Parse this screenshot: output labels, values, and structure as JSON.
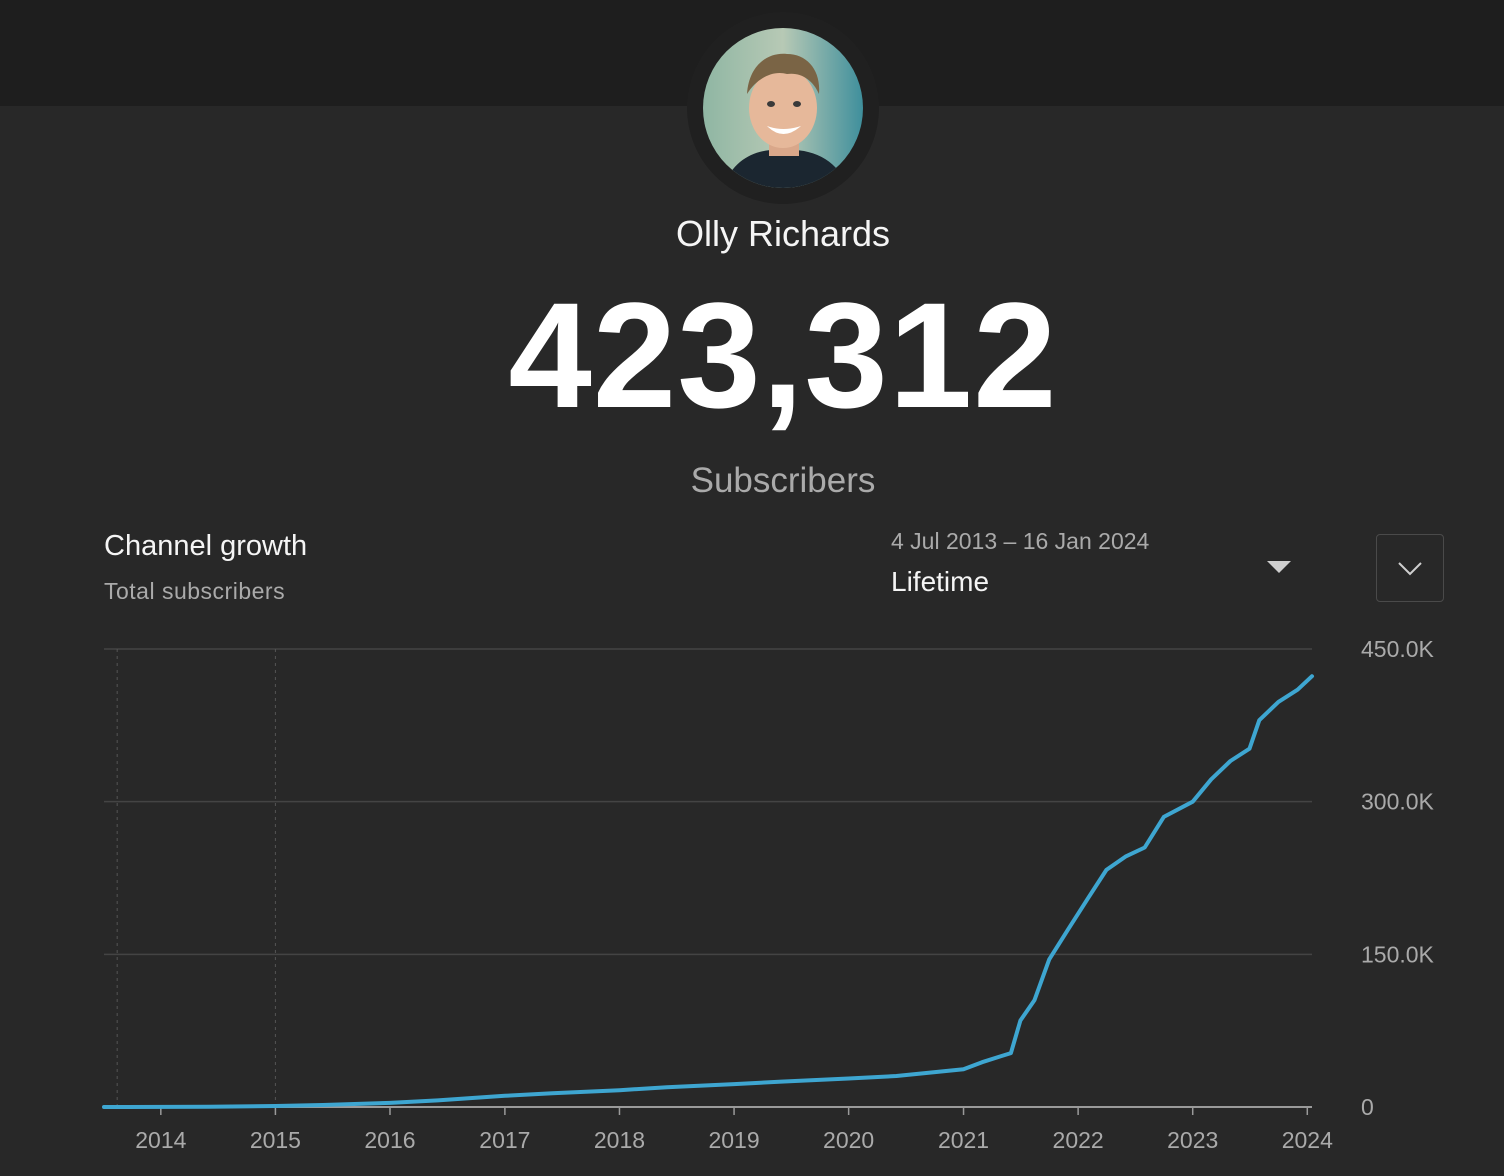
{
  "channel": {
    "name": "Olly Richards",
    "subscriber_count": "423,312",
    "subscriber_label": "Subscribers"
  },
  "card": {
    "title": "Channel growth",
    "subtitle": "Total subscribers"
  },
  "range": {
    "dates": "4 Jul 2013 – 16 Jan 2024",
    "label": "Lifetime"
  },
  "colors": {
    "background": "#282828",
    "top_band": "#1e1e1e",
    "line": "#3ea6d1",
    "grid": "#444444",
    "muted_text": "#aaaaaa"
  },
  "icons": {
    "range_dropdown": "caret-down-icon",
    "expand": "chevron-down-icon"
  },
  "chart_data": {
    "type": "line",
    "title": "Channel growth",
    "subtitle": "Total subscribers",
    "x_range": [
      "2013-07-04",
      "2024-01-16"
    ],
    "ylim": [
      0,
      450000
    ],
    "y_ticks": [
      {
        "value": 0,
        "label": "0"
      },
      {
        "value": 150000,
        "label": "150.0K"
      },
      {
        "value": 300000,
        "label": "300.0K"
      },
      {
        "value": 450000,
        "label": "450.0K"
      }
    ],
    "x_ticks": [
      {
        "date": "2014-01-01",
        "label": "2014"
      },
      {
        "date": "2015-01-01",
        "label": "2015"
      },
      {
        "date": "2016-01-01",
        "label": "2016"
      },
      {
        "date": "2017-01-01",
        "label": "2017"
      },
      {
        "date": "2018-01-01",
        "label": "2018"
      },
      {
        "date": "2019-01-01",
        "label": "2019"
      },
      {
        "date": "2020-01-01",
        "label": "2020"
      },
      {
        "date": "2021-01-01",
        "label": "2021"
      },
      {
        "date": "2022-01-01",
        "label": "2022"
      },
      {
        "date": "2023-01-01",
        "label": "2023"
      },
      {
        "date": "2024-01-01",
        "label": "2024"
      }
    ],
    "reference_lines": [
      "2013-08-15",
      "2015-01-01"
    ],
    "grid": true,
    "series": [
      {
        "values": [
          {
            "x": "2013-07-04",
            "y": 0
          },
          {
            "x": "2014-06-01",
            "y": 200
          },
          {
            "x": "2015-01-01",
            "y": 1000
          },
          {
            "x": "2015-06-01",
            "y": 2000
          },
          {
            "x": "2016-01-01",
            "y": 4000
          },
          {
            "x": "2016-06-01",
            "y": 6500
          },
          {
            "x": "2017-01-01",
            "y": 11000
          },
          {
            "x": "2017-06-01",
            "y": 13500
          },
          {
            "x": "2018-01-01",
            "y": 16500
          },
          {
            "x": "2018-06-01",
            "y": 19500
          },
          {
            "x": "2019-01-01",
            "y": 22500
          },
          {
            "x": "2019-06-01",
            "y": 25000
          },
          {
            "x": "2020-01-01",
            "y": 28000
          },
          {
            "x": "2020-06-01",
            "y": 30500
          },
          {
            "x": "2021-01-01",
            "y": 37000
          },
          {
            "x": "2021-03-01",
            "y": 44000
          },
          {
            "x": "2021-05-01",
            "y": 50000
          },
          {
            "x": "2021-06-01",
            "y": 53000
          },
          {
            "x": "2021-07-01",
            "y": 85000
          },
          {
            "x": "2021-08-15",
            "y": 105000
          },
          {
            "x": "2021-10-01",
            "y": 145000
          },
          {
            "x": "2021-12-01",
            "y": 175000
          },
          {
            "x": "2022-02-01",
            "y": 205000
          },
          {
            "x": "2022-04-01",
            "y": 233000
          },
          {
            "x": "2022-06-01",
            "y": 246000
          },
          {
            "x": "2022-08-01",
            "y": 255000
          },
          {
            "x": "2022-10-01",
            "y": 285000
          },
          {
            "x": "2023-01-01",
            "y": 300000
          },
          {
            "x": "2023-03-01",
            "y": 322000
          },
          {
            "x": "2023-05-01",
            "y": 340000
          },
          {
            "x": "2023-07-01",
            "y": 352000
          },
          {
            "x": "2023-08-01",
            "y": 380000
          },
          {
            "x": "2023-10-01",
            "y": 398000
          },
          {
            "x": "2023-12-01",
            "y": 410000
          },
          {
            "x": "2024-01-16",
            "y": 423312
          }
        ]
      }
    ]
  }
}
